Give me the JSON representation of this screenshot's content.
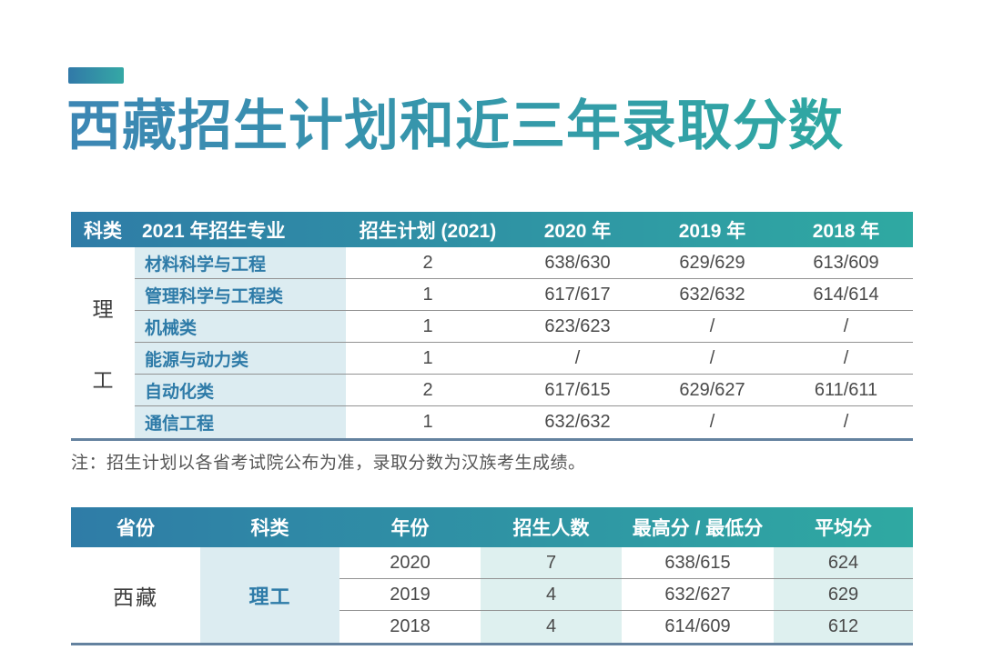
{
  "page": {
    "title": "西藏招生计划和近三年录取分数",
    "note": "注：招生计划以各省考试院公布为准，录取分数为汉族考生成绩。"
  },
  "colors": {
    "header_gradient_start": "#2F7CA7",
    "header_gradient_end": "#2FA9A2",
    "title_gradient_start": "#3C86B4",
    "title_gradient_end": "#2FA8A2",
    "light_cell_blue": "#DCECF1",
    "light_cell_teal": "#DEF0EF",
    "accent_text_blue": "#2E7BA8",
    "table_bottom_border": "#64829F"
  },
  "table1": {
    "headers": [
      "科类",
      "2021 年招生专业",
      "招生计划 (2021)",
      "2020 年",
      "2019 年",
      "2018 年"
    ],
    "category_chars": [
      "理",
      "工"
    ],
    "rows": [
      {
        "major": "材料科学与工程",
        "plan": "2",
        "y2020": "638/630",
        "y2019": "629/629",
        "y2018": "613/609"
      },
      {
        "major": "管理科学与工程类",
        "plan": "1",
        "y2020": "617/617",
        "y2019": "632/632",
        "y2018": "614/614"
      },
      {
        "major": "机械类",
        "plan": "1",
        "y2020": "623/623",
        "y2019": "/",
        "y2018": "/"
      },
      {
        "major": "能源与动力类",
        "plan": "1",
        "y2020": "/",
        "y2019": "/",
        "y2018": "/"
      },
      {
        "major": "自动化类",
        "plan": "2",
        "y2020": "617/615",
        "y2019": "629/627",
        "y2018": "611/611"
      },
      {
        "major": "通信工程",
        "plan": "1",
        "y2020": "632/632",
        "y2019": "/",
        "y2018": "/"
      }
    ]
  },
  "table2": {
    "headers": [
      "省份",
      "科类",
      "年份",
      "招生人数",
      "最高分 / 最低分",
      "平均分"
    ],
    "province": "西藏",
    "category": "理工",
    "rows": [
      {
        "year": "2020",
        "count": "7",
        "maxmin": "638/615",
        "avg": "624"
      },
      {
        "year": "2019",
        "count": "4",
        "maxmin": "632/627",
        "avg": "629"
      },
      {
        "year": "2018",
        "count": "4",
        "maxmin": "614/609",
        "avg": "612"
      }
    ]
  }
}
